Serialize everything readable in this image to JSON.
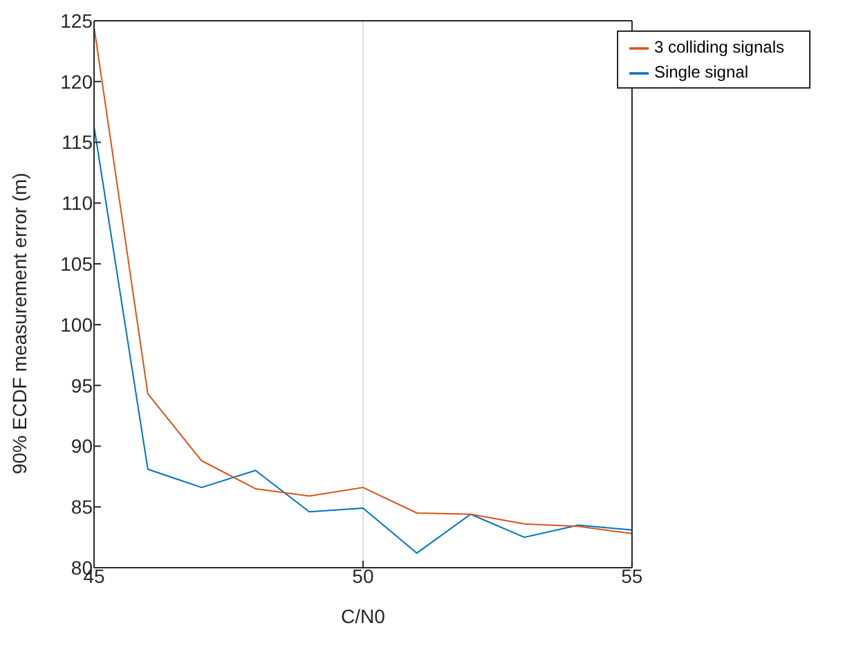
{
  "chart_data": {
    "type": "line",
    "xlabel": "C/N0",
    "ylabel": "90% ECDF measurement error (m)",
    "x": [
      45,
      46,
      47,
      48,
      49,
      50,
      51,
      52,
      53,
      54,
      55
    ],
    "series": [
      {
        "name": "Single signal",
        "color": "#0072bd",
        "values": [
          116.3,
          88.1,
          86.6,
          88.0,
          84.6,
          84.9,
          81.2,
          84.4,
          82.5,
          83.5,
          83.1
        ]
      },
      {
        "name": "3 colliding signals",
        "color": "#d95319",
        "values": [
          124.5,
          94.3,
          88.8,
          86.5,
          85.9,
          86.6,
          84.5,
          84.4,
          83.6,
          83.4,
          82.8
        ]
      }
    ],
    "xlim": [
      45,
      55
    ],
    "xticks": [
      45,
      50,
      55
    ],
    "ylim": [
      80,
      125
    ],
    "yticks": [
      80,
      85,
      90,
      95,
      100,
      105,
      110,
      115,
      120,
      125
    ],
    "grid": "x",
    "legend": "top right",
    "marker": "none",
    "line_style": "solid"
  }
}
